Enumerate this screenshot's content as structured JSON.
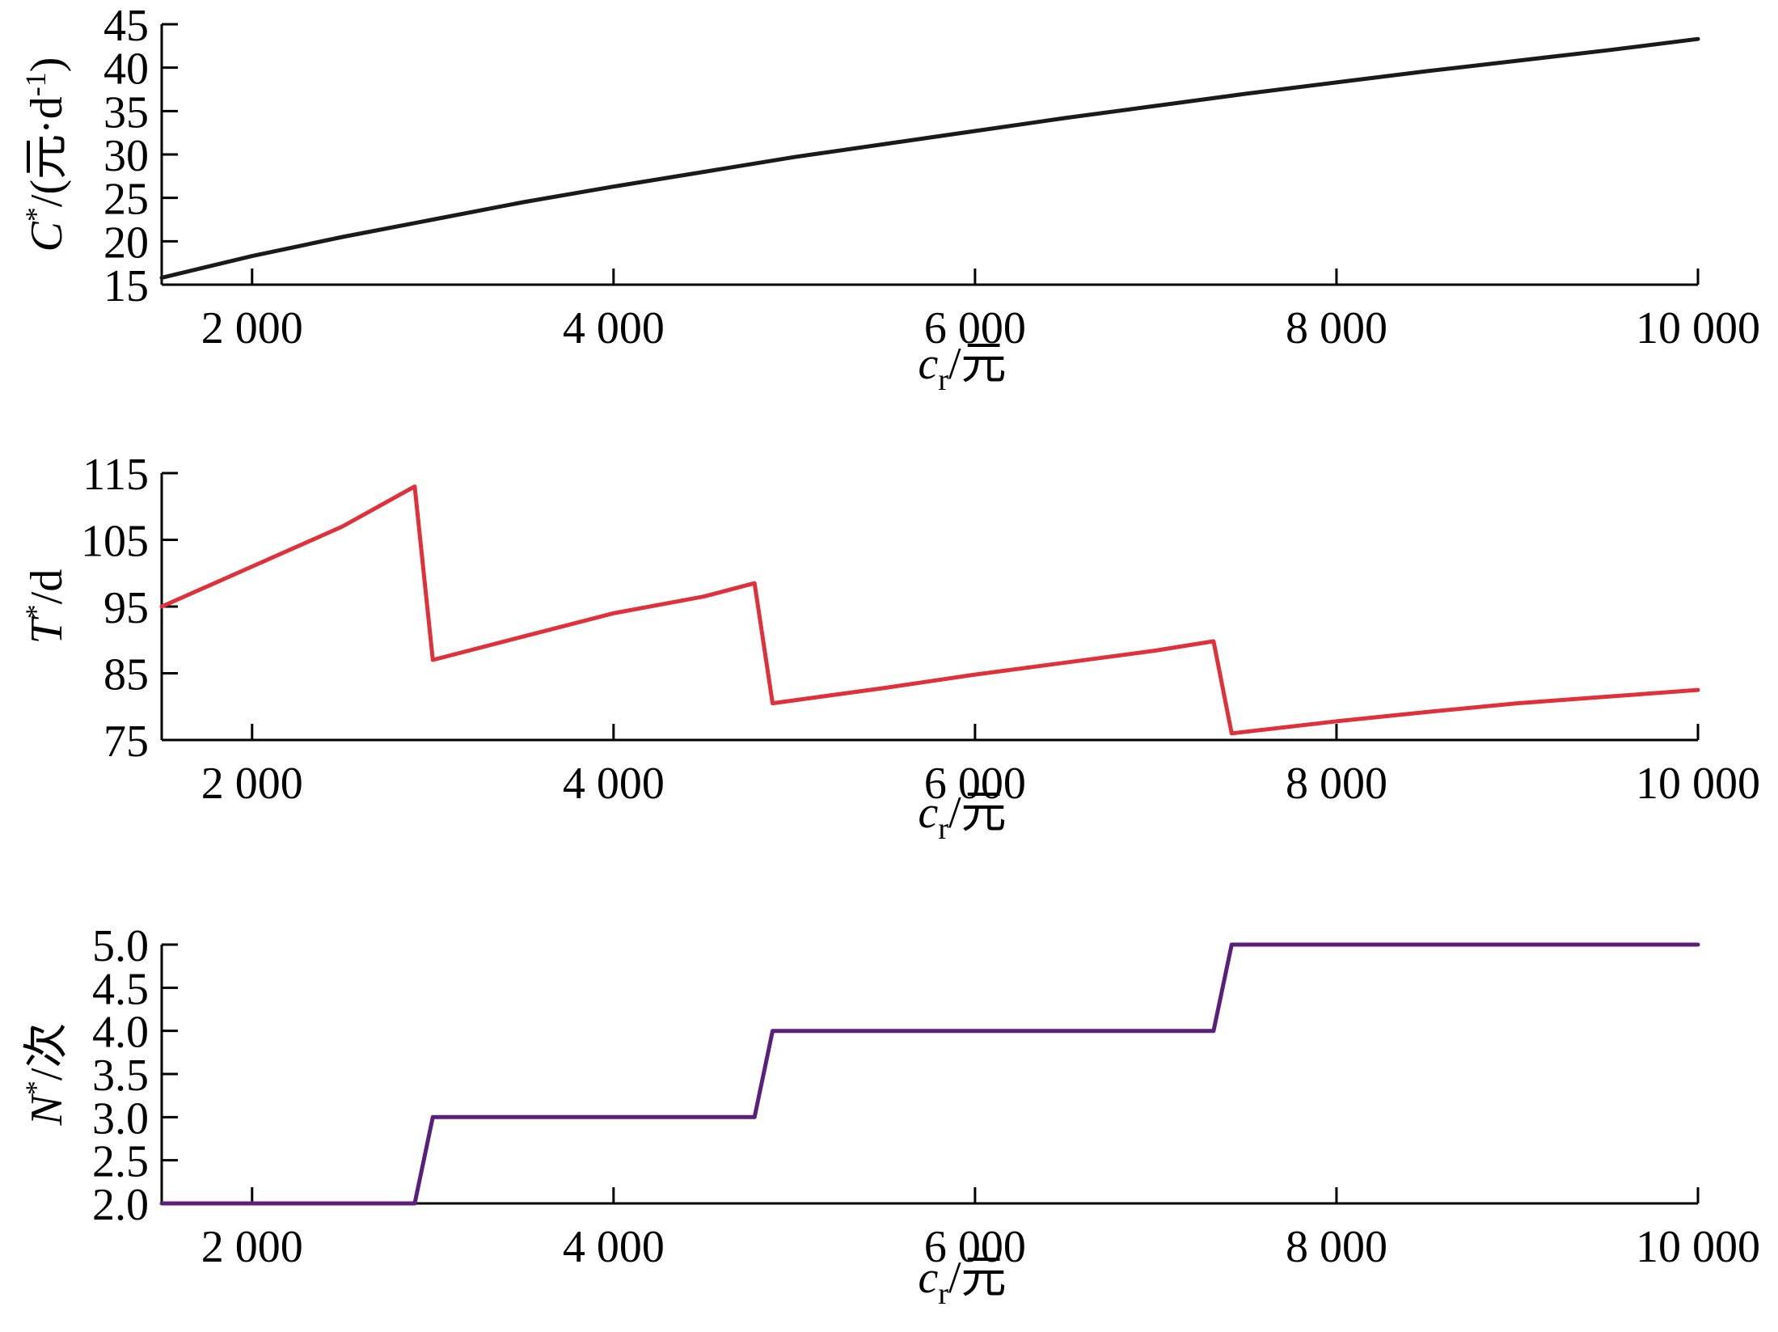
{
  "chart_data": [
    {
      "type": "line",
      "xlabel": "c_r/元",
      "xlabel_main": "c",
      "xlabel_sub": "r",
      "xlabel_unit": "/元",
      "ylabel": "C*/(元·d⁻¹)",
      "ylabel_main": "C",
      "ylabel_sup": "*",
      "ylabel_unit_a": "/(元·d",
      "ylabel_unit_sup": "-1",
      "ylabel_unit_b": ")",
      "xlim": [
        1500,
        10000
      ],
      "ylim": [
        15,
        45
      ],
      "xticks": [
        2000,
        4000,
        6000,
        8000,
        10000
      ],
      "xtick_labels": [
        "2 000",
        "4 000",
        "6 000",
        "8 000",
        "10 000"
      ],
      "yticks": [
        15,
        20,
        25,
        30,
        35,
        40,
        45
      ],
      "ytick_labels": [
        "15",
        "20",
        "25",
        "30",
        "35",
        "40",
        "45"
      ],
      "series": [
        {
          "color": "#1a1a1a",
          "x": [
            1500,
            2000,
            2500,
            3000,
            3500,
            4000,
            4500,
            5000,
            5500,
            6000,
            6500,
            7000,
            7500,
            8000,
            8500,
            9000,
            9500,
            10000
          ],
          "y": [
            15.8,
            18.3,
            20.5,
            22.5,
            24.5,
            26.3,
            28.0,
            29.7,
            31.2,
            32.7,
            34.2,
            35.6,
            37.0,
            38.3,
            39.6,
            40.8,
            42.0,
            43.3
          ]
        }
      ]
    },
    {
      "type": "line",
      "xlabel": "c_r/元",
      "xlabel_main": "c",
      "xlabel_sub": "r",
      "xlabel_unit": "/元",
      "ylabel": "T*/d",
      "ylabel_main": "T",
      "ylabel_sup": "*",
      "ylabel_unit_a": "/d",
      "ylabel_unit_sup": "",
      "ylabel_unit_b": "",
      "xlim": [
        1500,
        10000
      ],
      "ylim": [
        75,
        115
      ],
      "xticks": [
        2000,
        4000,
        6000,
        8000,
        10000
      ],
      "xtick_labels": [
        "2 000",
        "4 000",
        "6 000",
        "8 000",
        "10 000"
      ],
      "yticks": [
        75,
        85,
        95,
        105,
        115
      ],
      "ytick_labels": [
        "75",
        "85",
        "95",
        "105",
        "115"
      ],
      "series": [
        {
          "color": "#e0303a",
          "x": [
            1500,
            2000,
            2500,
            2900,
            3000,
            3500,
            4000,
            4500,
            4780,
            4880,
            5500,
            6000,
            6500,
            7000,
            7320,
            7420,
            8000,
            8500,
            9000,
            9500,
            10000
          ],
          "y": [
            95.0,
            101.0,
            107.0,
            113.0,
            87.0,
            90.5,
            94.0,
            96.5,
            98.5,
            80.5,
            82.8,
            84.8,
            86.6,
            88.4,
            89.8,
            76.0,
            77.8,
            79.2,
            80.5,
            81.5,
            82.5
          ]
        }
      ]
    },
    {
      "type": "line",
      "xlabel": "c_r/元",
      "xlabel_main": "c",
      "xlabel_sub": "r",
      "xlabel_unit": "/元",
      "ylabel": "N*/次",
      "ylabel_main": "N",
      "ylabel_sup": "*",
      "ylabel_unit_a": "/次",
      "ylabel_unit_sup": "",
      "ylabel_unit_b": "",
      "xlim": [
        1500,
        10000
      ],
      "ylim": [
        2.0,
        5.0
      ],
      "xticks": [
        2000,
        4000,
        6000,
        8000,
        10000
      ],
      "xtick_labels": [
        "2 000",
        "4 000",
        "6 000",
        "8 000",
        "10 000"
      ],
      "yticks": [
        2.0,
        2.5,
        3.0,
        3.5,
        4.0,
        4.5,
        5.0
      ],
      "ytick_labels": [
        "2.0",
        "2.5",
        "3.0",
        "3.5",
        "4.0",
        "4.5",
        "5.0"
      ],
      "series": [
        {
          "color": "#5a1f7a",
          "x": [
            1500,
            2900,
            3000,
            4780,
            4880,
            7320,
            7420,
            10000
          ],
          "y": [
            2.0,
            2.0,
            3.0,
            3.0,
            4.0,
            4.0,
            5.0,
            5.0
          ]
        }
      ]
    }
  ]
}
